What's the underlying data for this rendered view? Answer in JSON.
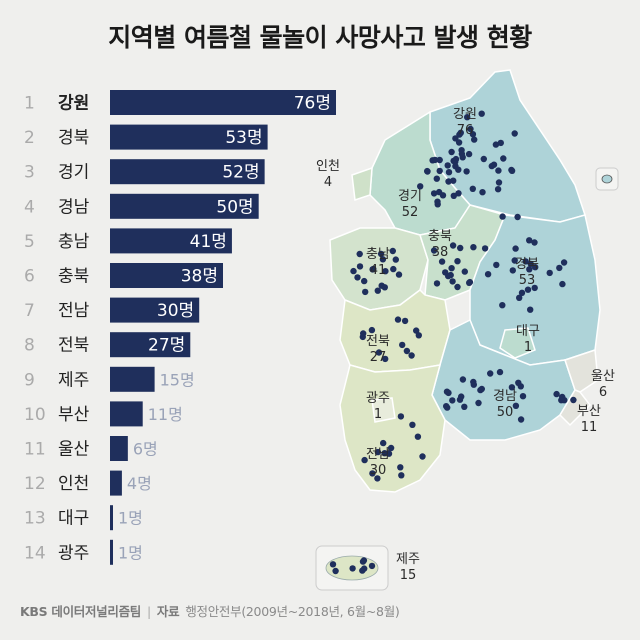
{
  "title": "지역별 여름철 물놀이 사망사고 발생 현황",
  "footer": {
    "brand": "KBS 데이터저널리즘팀",
    "separator": "|",
    "source_label": "자료",
    "source_text": "행정안전부(2009년~2018년, 6월~8월)"
  },
  "colors": {
    "bar_dark": "#1f2f5c",
    "rank_text": "#aaaaaa",
    "value_outside": "#9aa3b8",
    "map_blue": "#aed3d8",
    "map_green": "#d3e3cd",
    "map_border": "#ffffff",
    "dot": "#1f2f5c"
  },
  "chart_data": {
    "type": "bar",
    "orientation": "horizontal",
    "unit": "명",
    "ranks": [
      "1",
      "2",
      "3",
      "4",
      "5",
      "6",
      "7",
      "8",
      "9",
      "10",
      "11",
      "12",
      "13",
      "14"
    ],
    "categories": [
      "강원",
      "경북",
      "경기",
      "경남",
      "충남",
      "충북",
      "전남",
      "전북",
      "제주",
      "부산",
      "울산",
      "인천",
      "대구",
      "광주"
    ],
    "values": [
      76,
      53,
      52,
      50,
      41,
      38,
      30,
      27,
      15,
      11,
      6,
      4,
      1,
      1
    ],
    "value_labels": [
      "76명",
      "53명",
      "52명",
      "50명",
      "41명",
      "38명",
      "30명",
      "27명",
      "15명",
      "11명",
      "6명",
      "4명",
      "1명",
      "1명"
    ],
    "xlim": [
      0,
      76
    ]
  },
  "map_labels": [
    {
      "name": "강원",
      "value": "76"
    },
    {
      "name": "인천",
      "value": "4"
    },
    {
      "name": "경기",
      "value": "52"
    },
    {
      "name": "충남",
      "value": "41"
    },
    {
      "name": "충북",
      "value": "38"
    },
    {
      "name": "경북",
      "value": "53"
    },
    {
      "name": "대구",
      "value": "1"
    },
    {
      "name": "전북",
      "value": "27"
    },
    {
      "name": "울산",
      "value": "6"
    },
    {
      "name": "광주",
      "value": "1"
    },
    {
      "name": "경남",
      "value": "50"
    },
    {
      "name": "부산",
      "value": "11"
    },
    {
      "name": "전남",
      "value": "30"
    },
    {
      "name": "제주",
      "value": "15"
    }
  ]
}
